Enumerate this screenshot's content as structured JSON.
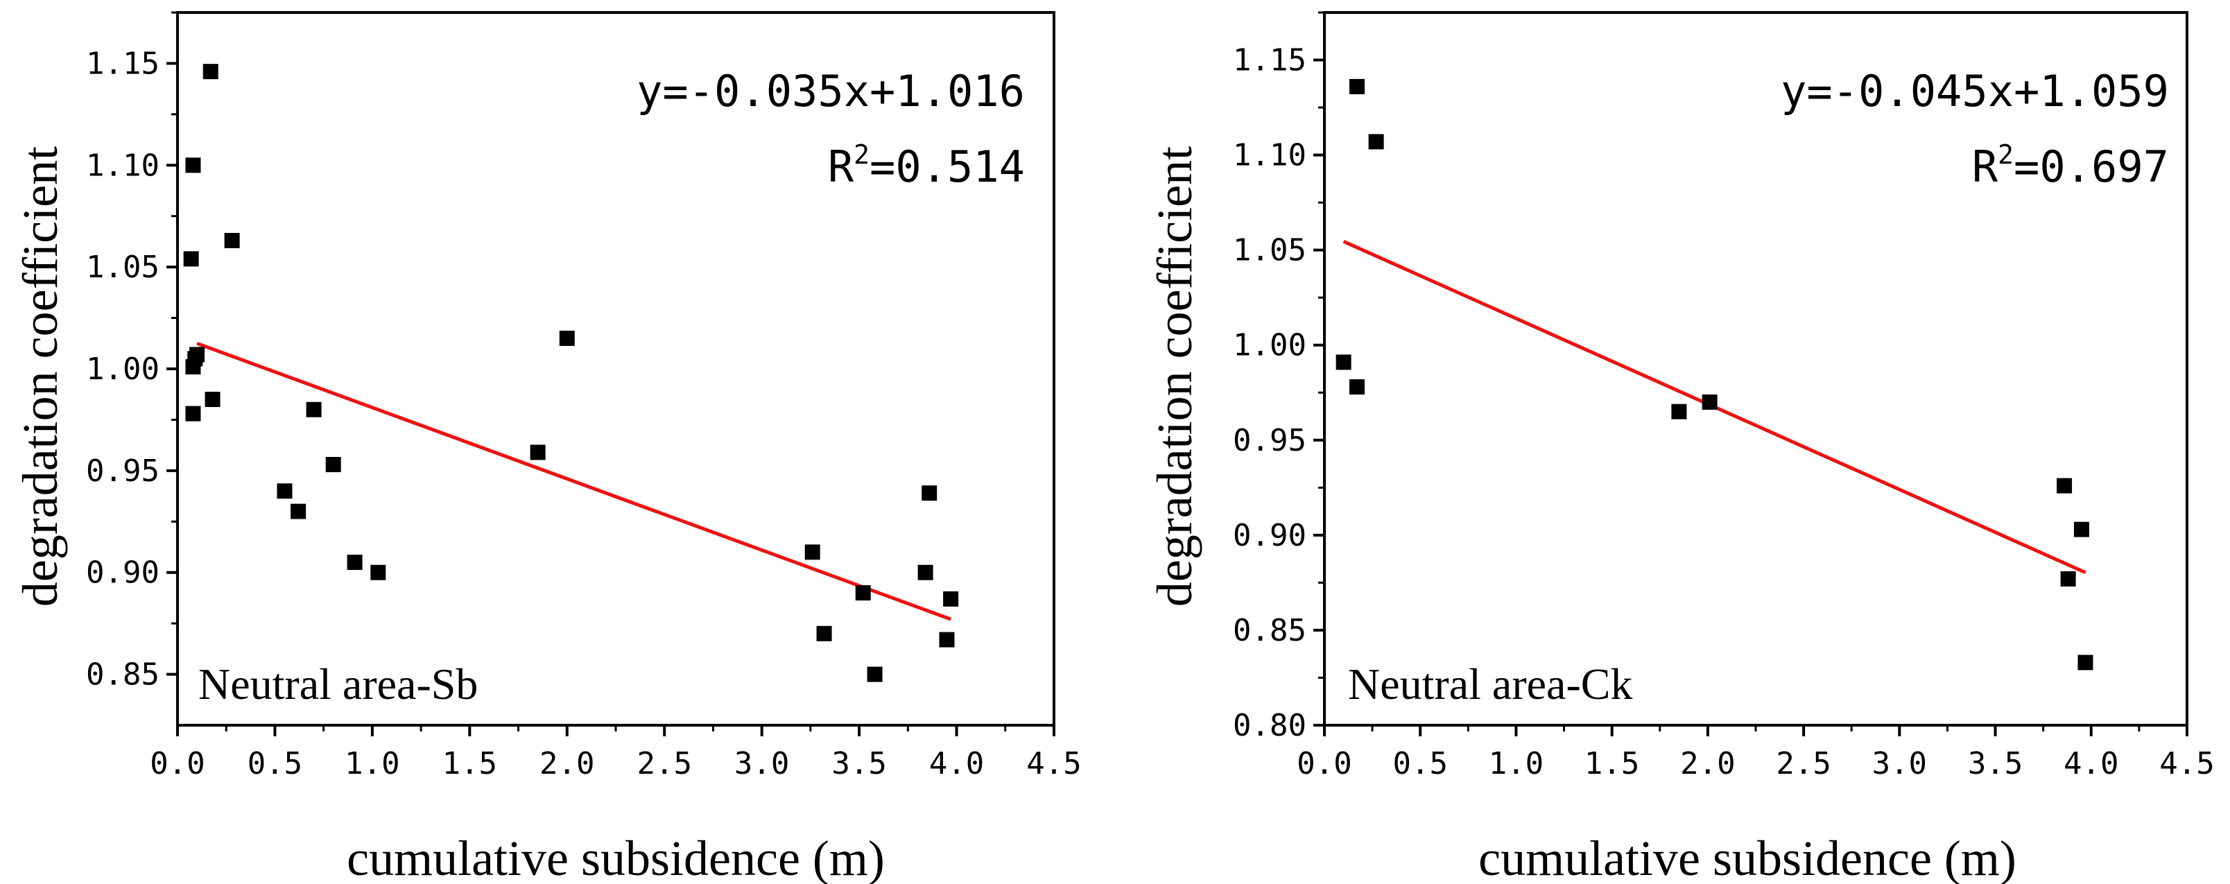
{
  "colors": {
    "points": "#000000",
    "fit_line": "#ee1111",
    "axes": "#000000",
    "background": "#ffffff"
  },
  "chart_data": [
    {
      "type": "scatter",
      "panel_label": "Neutral area-Sb",
      "equation": "y=-0.035x+1.016",
      "r2_prefix": "R",
      "r2_sup": "2",
      "r2_value": "=0.514",
      "xlabel": "cumulative subsidence (m)",
      "ylabel": "degradation coefficient",
      "xlim": [
        0,
        4.5
      ],
      "ylim": [
        0.825,
        1.175
      ],
      "xticks": [
        "0.0",
        "0.5",
        "1.0",
        "1.5",
        "2.0",
        "2.5",
        "3.0",
        "3.5",
        "4.0",
        "4.5"
      ],
      "yticks": [
        "0.85",
        "0.90",
        "0.95",
        "1.00",
        "1.05",
        "1.10",
        "1.15"
      ],
      "points": [
        [
          0.07,
          1.054
        ],
        [
          0.08,
          1.1
        ],
        [
          0.08,
          1.001
        ],
        [
          0.09,
          1.005
        ],
        [
          0.08,
          0.978
        ],
        [
          0.1,
          1.007
        ],
        [
          0.17,
          1.146
        ],
        [
          0.18,
          0.985
        ],
        [
          0.28,
          1.063
        ],
        [
          0.55,
          0.94
        ],
        [
          0.62,
          0.93
        ],
        [
          0.7,
          0.98
        ],
        [
          0.8,
          0.953
        ],
        [
          0.91,
          0.905
        ],
        [
          1.03,
          0.9
        ],
        [
          1.85,
          0.959
        ],
        [
          2.0,
          1.015
        ],
        [
          3.26,
          0.91
        ],
        [
          3.32,
          0.87
        ],
        [
          3.52,
          0.89
        ],
        [
          3.58,
          0.85
        ],
        [
          3.84,
          0.9
        ],
        [
          3.86,
          0.939
        ],
        [
          3.95,
          0.867
        ],
        [
          3.97,
          0.887
        ]
      ],
      "fit": {
        "slope": -0.035,
        "intercept": 1.016,
        "x_range": [
          0.1,
          3.97
        ]
      }
    },
    {
      "type": "scatter",
      "panel_label": "Neutral area-Ck",
      "equation": "y=-0.045x+1.059",
      "r2_prefix": "R",
      "r2_sup": "2",
      "r2_value": "=0.697",
      "xlabel": "cumulative subsidence (m)",
      "ylabel": "degradation coefficient",
      "xlim": [
        0,
        4.5
      ],
      "ylim": [
        0.8,
        1.175
      ],
      "xticks": [
        "0.0",
        "0.5",
        "1.0",
        "1.5",
        "2.0",
        "2.5",
        "3.0",
        "3.5",
        "4.0",
        "4.5"
      ],
      "yticks": [
        "0.80",
        "0.85",
        "0.90",
        "0.95",
        "1.00",
        "1.05",
        "1.10",
        "1.15"
      ],
      "points": [
        [
          0.1,
          0.991
        ],
        [
          0.17,
          0.978
        ],
        [
          0.17,
          1.136
        ],
        [
          0.27,
          1.107
        ],
        [
          1.85,
          0.965
        ],
        [
          2.01,
          0.97
        ],
        [
          3.86,
          0.926
        ],
        [
          3.88,
          0.877
        ],
        [
          3.95,
          0.903
        ],
        [
          3.97,
          0.833
        ]
      ],
      "fit": {
        "slope": -0.045,
        "intercept": 1.059,
        "x_range": [
          0.1,
          3.97
        ]
      }
    }
  ]
}
